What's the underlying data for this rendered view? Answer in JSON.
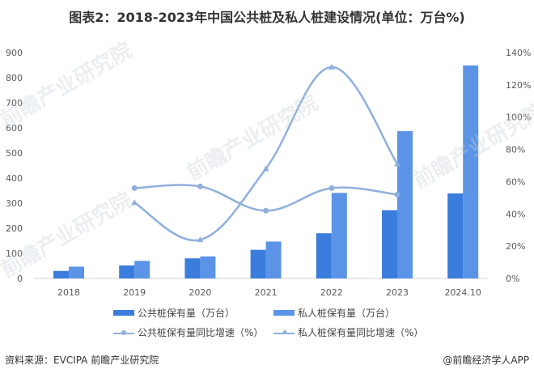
{
  "title": "图表2：2018-2023年中国公共桩及私人桩建设情况(单位：万台%)",
  "chart_data": {
    "type": "bar",
    "title": "图表2：2018-2023年中国公共桩及私人桩建设情况(单位：万台%)",
    "categories": [
      "2018",
      "2019",
      "2020",
      "2021",
      "2022",
      "2023",
      "2024.10"
    ],
    "series": [
      {
        "name": "公共桩保有量（万台）",
        "type": "bar",
        "axis": "left",
        "color": "#3b7ddd",
        "values": [
          30,
          52,
          80,
          114,
          180,
          272,
          339
        ]
      },
      {
        "name": "私人桩保有量（万台）",
        "type": "bar",
        "axis": "left",
        "color": "#5b94e6",
        "values": [
          47,
          70,
          88,
          147,
          341,
          587,
          849
        ]
      },
      {
        "name": "公共桩保有量同比增速（%）",
        "type": "line",
        "marker": "circle",
        "axis": "right",
        "color": "#8fb0dd",
        "values": [
          null,
          56,
          57,
          42,
          56,
          52,
          null
        ]
      },
      {
        "name": "私人桩保有量同比增速（%）",
        "type": "line",
        "marker": "triangle",
        "axis": "right",
        "color": "#8fb0dd",
        "values": [
          null,
          47,
          24,
          68,
          131,
          71,
          null
        ]
      }
    ],
    "xlabel": "",
    "ylabel": "",
    "ylim": [
      0,
      900
    ],
    "y_ticks": [
      "0",
      "100",
      "200",
      "300",
      "400",
      "500",
      "600",
      "700",
      "800",
      "900"
    ],
    "y2lim": [
      0,
      140
    ],
    "y2_ticks": [
      "0%",
      "20%",
      "40%",
      "60%",
      "80%",
      "100%",
      "120%",
      "140%"
    ],
    "grid": false,
    "legend_position": "bottom"
  },
  "legend": [
    "公共桩保有量（万台）",
    "私人桩保有量（万台）",
    "公共桩保有量同比增速（%）",
    "私人桩保有量同比增速（%）"
  ],
  "footer": {
    "source": "资料来源：EVCIPA 前瞻产业研究院",
    "credit": "@前瞻经济学人APP"
  },
  "watermark": "前瞻产业研究院"
}
